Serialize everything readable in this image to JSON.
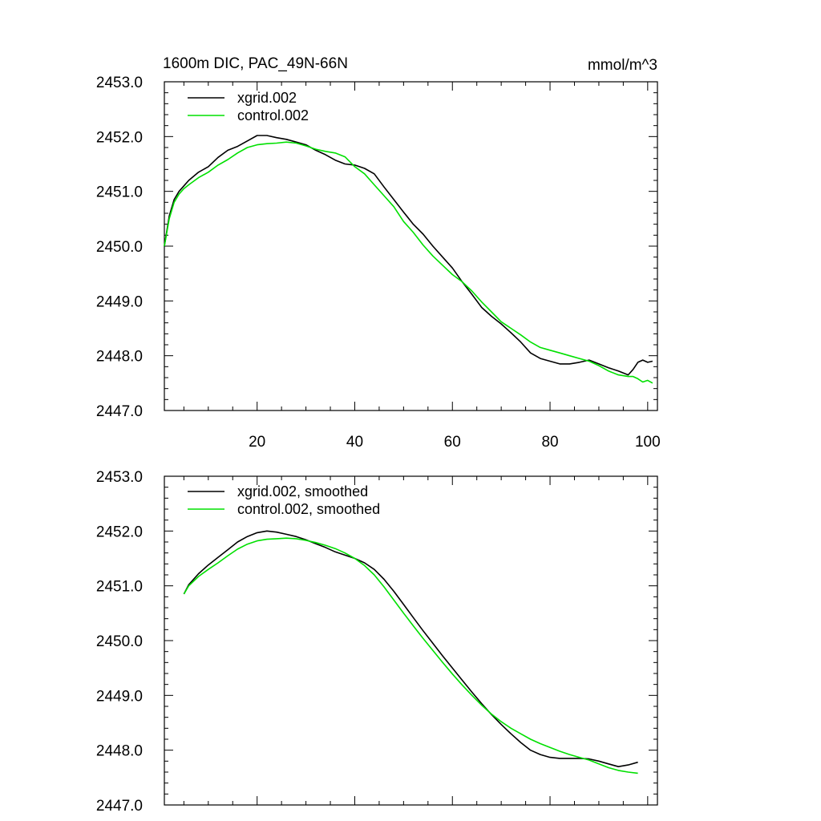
{
  "chart_data": [
    {
      "type": "line",
      "title": "1600m DIC, PAC_49N-66N",
      "units": "mmol/m^3",
      "xlabel": "",
      "ylabel": "",
      "xlim": [
        1,
        102
      ],
      "ylim": [
        2447.0,
        2453.0
      ],
      "xticks": [
        20,
        40,
        60,
        80,
        100
      ],
      "xtick_labels": [
        "20",
        "40",
        "60",
        "80",
        "100"
      ],
      "yticks": [
        2447.0,
        2448.0,
        2449.0,
        2450.0,
        2451.0,
        2452.0,
        2453.0
      ],
      "ytick_labels": [
        "2447.0",
        "2448.0",
        "2449.0",
        "2450.0",
        "2451.0",
        "2452.0",
        "2453.0"
      ],
      "grid": false,
      "legend": "top-left",
      "series": [
        {
          "name": "xgrid.002",
          "color": "#000000",
          "x": [
            1,
            2,
            3,
            4,
            5,
            6,
            8,
            10,
            12,
            14,
            16,
            18,
            20,
            22,
            24,
            26,
            28,
            30,
            32,
            34,
            36,
            38,
            40,
            42,
            44,
            46,
            48,
            50,
            52,
            54,
            56,
            58,
            60,
            62,
            64,
            66,
            68,
            70,
            72,
            74,
            76,
            78,
            80,
            82,
            84,
            86,
            88,
            90,
            92,
            94,
            96,
            97,
            98,
            99,
            100,
            101
          ],
          "y": [
            2450.0,
            2450.55,
            2450.85,
            2451.0,
            2451.1,
            2451.2,
            2451.35,
            2451.45,
            2451.62,
            2451.75,
            2451.82,
            2451.92,
            2452.02,
            2452.02,
            2451.98,
            2451.95,
            2451.9,
            2451.85,
            2451.75,
            2451.67,
            2451.57,
            2451.5,
            2451.48,
            2451.42,
            2451.32,
            2451.08,
            2450.85,
            2450.62,
            2450.4,
            2450.22,
            2450.0,
            2449.8,
            2449.6,
            2449.35,
            2449.12,
            2448.88,
            2448.72,
            2448.58,
            2448.42,
            2448.25,
            2448.05,
            2447.95,
            2447.9,
            2447.85,
            2447.85,
            2447.88,
            2447.92,
            2447.85,
            2447.78,
            2447.72,
            2447.65,
            2447.75,
            2447.88,
            2447.92,
            2447.88,
            2447.9
          ]
        },
        {
          "name": "control.002",
          "color": "#00e000",
          "x": [
            1,
            2,
            3,
            4,
            5,
            6,
            8,
            10,
            12,
            14,
            16,
            18,
            20,
            22,
            24,
            26,
            28,
            30,
            32,
            34,
            36,
            38,
            40,
            42,
            44,
            46,
            48,
            50,
            52,
            54,
            56,
            58,
            60,
            62,
            64,
            66,
            68,
            70,
            72,
            74,
            76,
            78,
            80,
            82,
            84,
            86,
            88,
            90,
            92,
            94,
            96,
            97,
            98,
            99,
            100,
            101
          ],
          "y": [
            2450.0,
            2450.5,
            2450.8,
            2450.95,
            2451.05,
            2451.12,
            2451.25,
            2451.35,
            2451.48,
            2451.58,
            2451.7,
            2451.8,
            2451.85,
            2451.87,
            2451.88,
            2451.9,
            2451.88,
            2451.83,
            2451.77,
            2451.73,
            2451.7,
            2451.63,
            2451.45,
            2451.32,
            2451.12,
            2450.92,
            2450.72,
            2450.45,
            2450.25,
            2450.02,
            2449.82,
            2449.65,
            2449.48,
            2449.35,
            2449.18,
            2448.98,
            2448.8,
            2448.62,
            2448.5,
            2448.38,
            2448.25,
            2448.15,
            2448.1,
            2448.05,
            2448.0,
            2447.95,
            2447.9,
            2447.82,
            2447.72,
            2447.65,
            2447.62,
            2447.62,
            2447.58,
            2447.52,
            2447.55,
            2447.5
          ]
        }
      ]
    },
    {
      "type": "line",
      "title": "",
      "xlabel": "",
      "ylabel": "",
      "xlim": [
        1,
        102
      ],
      "ylim": [
        2447.0,
        2453.0
      ],
      "xticks": [
        20,
        40,
        60,
        80,
        100
      ],
      "yticks": [
        2447.0,
        2448.0,
        2449.0,
        2450.0,
        2451.0,
        2452.0,
        2453.0
      ],
      "ytick_labels": [
        "2447.0",
        "2448.0",
        "2449.0",
        "2450.0",
        "2451.0",
        "2452.0",
        "2453.0"
      ],
      "grid": false,
      "legend": "top-left",
      "series": [
        {
          "name": "xgrid.002, smoothed",
          "color": "#000000",
          "x": [
            5,
            6,
            8,
            10,
            12,
            14,
            16,
            18,
            20,
            22,
            24,
            26,
            28,
            30,
            32,
            34,
            36,
            38,
            40,
            42,
            44,
            46,
            48,
            50,
            52,
            54,
            56,
            58,
            60,
            62,
            64,
            66,
            68,
            70,
            72,
            74,
            76,
            78,
            80,
            82,
            84,
            86,
            88,
            90,
            92,
            94,
            96,
            98
          ],
          "y": [
            2450.85,
            2451.02,
            2451.22,
            2451.38,
            2451.52,
            2451.66,
            2451.8,
            2451.9,
            2451.97,
            2452.0,
            2451.98,
            2451.94,
            2451.9,
            2451.84,
            2451.77,
            2451.7,
            2451.62,
            2451.56,
            2451.5,
            2451.42,
            2451.3,
            2451.12,
            2450.9,
            2450.66,
            2450.42,
            2450.18,
            2449.95,
            2449.72,
            2449.5,
            2449.28,
            2449.06,
            2448.85,
            2448.65,
            2448.47,
            2448.3,
            2448.14,
            2448.0,
            2447.92,
            2447.87,
            2447.85,
            2447.85,
            2447.85,
            2447.84,
            2447.8,
            2447.75,
            2447.7,
            2447.73,
            2447.78
          ]
        },
        {
          "name": "control.002, smoothed",
          "color": "#00e000",
          "x": [
            5,
            6,
            8,
            10,
            12,
            14,
            16,
            18,
            20,
            22,
            24,
            26,
            28,
            30,
            32,
            34,
            36,
            38,
            40,
            42,
            44,
            46,
            48,
            50,
            52,
            54,
            56,
            58,
            60,
            62,
            64,
            66,
            68,
            70,
            72,
            74,
            76,
            78,
            80,
            82,
            84,
            86,
            88,
            90,
            92,
            94,
            96,
            98
          ],
          "y": [
            2450.85,
            2451.0,
            2451.17,
            2451.3,
            2451.42,
            2451.55,
            2451.67,
            2451.76,
            2451.82,
            2451.85,
            2451.86,
            2451.87,
            2451.86,
            2451.83,
            2451.79,
            2451.74,
            2451.68,
            2451.6,
            2451.5,
            2451.37,
            2451.2,
            2450.98,
            2450.74,
            2450.5,
            2450.27,
            2450.04,
            2449.82,
            2449.6,
            2449.39,
            2449.19,
            2449.0,
            2448.82,
            2448.66,
            2448.52,
            2448.4,
            2448.3,
            2448.2,
            2448.12,
            2448.05,
            2447.98,
            2447.92,
            2447.87,
            2447.82,
            2447.75,
            2447.68,
            2447.63,
            2447.6,
            2447.58
          ]
        }
      ]
    }
  ]
}
